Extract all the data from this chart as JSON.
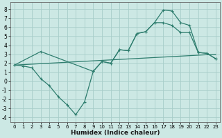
{
  "line1_x": [
    0,
    1,
    2,
    3,
    4,
    5,
    6,
    7,
    8,
    9,
    10,
    11,
    12,
    13,
    14,
    15,
    16,
    17,
    18,
    19,
    20,
    21,
    22,
    23
  ],
  "line1_y": [
    1.8,
    1.7,
    1.5,
    0.3,
    -0.5,
    -1.7,
    -2.6,
    -3.7,
    -2.3,
    1.1,
    2.2,
    2.0,
    3.5,
    3.4,
    5.3,
    5.5,
    6.5,
    7.9,
    7.8,
    6.5,
    6.2,
    3.2,
    3.1,
    2.5
  ],
  "line2_x": [
    0,
    23
  ],
  "line2_y": [
    1.8,
    3.0
  ],
  "line3_x": [
    0,
    3,
    9,
    10,
    11,
    12,
    13,
    14,
    15,
    16,
    17,
    18,
    19,
    20,
    21,
    22,
    23
  ],
  "line3_y": [
    1.8,
    3.3,
    1.1,
    2.2,
    2.0,
    3.5,
    3.4,
    5.3,
    5.5,
    6.5,
    6.5,
    6.2,
    5.4,
    5.4,
    3.2,
    3.1,
    2.5
  ],
  "color": "#2e7d6e",
  "bg_color": "#cce8e4",
  "grid_color": "#a8cdc9",
  "xlabel": "Humidex (Indice chaleur)",
  "xlim": [
    -0.5,
    23.5
  ],
  "ylim": [
    -4.5,
    8.8
  ],
  "yticks": [
    -4,
    -3,
    -2,
    -1,
    0,
    1,
    2,
    3,
    4,
    5,
    6,
    7,
    8
  ],
  "xticks": [
    0,
    1,
    2,
    3,
    4,
    5,
    6,
    7,
    8,
    9,
    10,
    11,
    12,
    13,
    14,
    15,
    16,
    17,
    18,
    19,
    20,
    21,
    22,
    23
  ]
}
